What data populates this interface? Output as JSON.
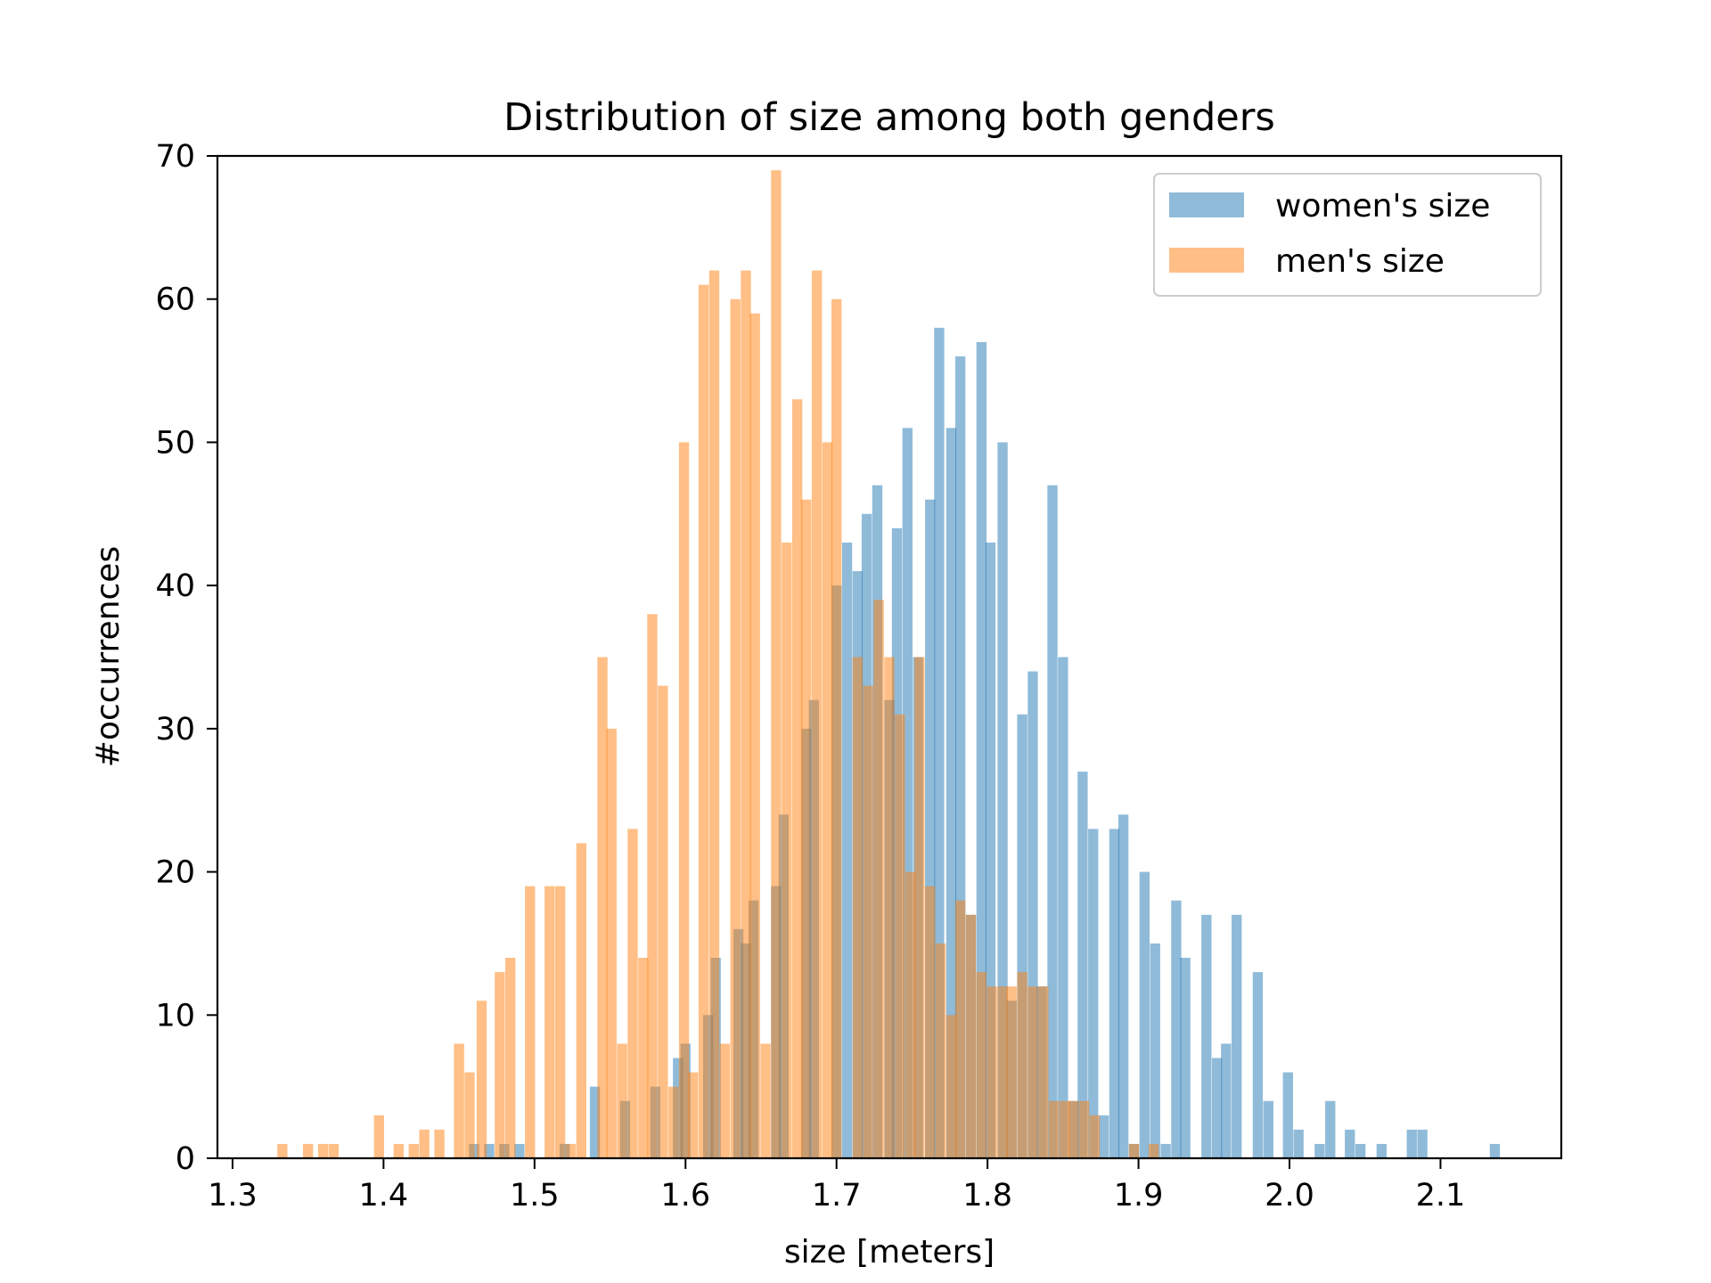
{
  "chart_data": {
    "type": "bar",
    "title": "Distribution of size among both genders",
    "xlabel": "size [meters]",
    "ylabel": "#occurrences",
    "xlim": [
      1.29,
      2.18
    ],
    "ylim": [
      0,
      70
    ],
    "xticks": [
      {
        "value": 1.3,
        "label": "1.3"
      },
      {
        "value": 1.4,
        "label": "1.4"
      },
      {
        "value": 1.5,
        "label": "1.5"
      },
      {
        "value": 1.6,
        "label": "1.6"
      },
      {
        "value": 1.7,
        "label": "1.7"
      },
      {
        "value": 1.8,
        "label": "1.8"
      },
      {
        "value": 1.9,
        "label": "1.9"
      },
      {
        "value": 2.0,
        "label": "2.0"
      },
      {
        "value": 2.1,
        "label": "2.1"
      }
    ],
    "yticks": [
      {
        "value": 0,
        "label": "0"
      },
      {
        "value": 10,
        "label": "10"
      },
      {
        "value": 20,
        "label": "20"
      },
      {
        "value": 30,
        "label": "30"
      },
      {
        "value": 40,
        "label": "40"
      },
      {
        "value": 50,
        "label": "50"
      },
      {
        "value": 60,
        "label": "60"
      },
      {
        "value": 70,
        "label": "70"
      }
    ],
    "grid": false,
    "legend_position": "top-right",
    "bin_width": 0.0067,
    "series": [
      {
        "name": "women's size",
        "color": "#1f77b4",
        "opacity": 0.5,
        "bins": [
          {
            "x": 1.46,
            "y": 1
          },
          {
            "x": 1.47,
            "y": 1
          },
          {
            "x": 1.48,
            "y": 1
          },
          {
            "x": 1.49,
            "y": 1
          },
          {
            "x": 1.52,
            "y": 1
          },
          {
            "x": 1.54,
            "y": 5
          },
          {
            "x": 1.56,
            "y": 4
          },
          {
            "x": 1.58,
            "y": 5
          },
          {
            "x": 1.595,
            "y": 7
          },
          {
            "x": 1.6,
            "y": 8
          },
          {
            "x": 1.615,
            "y": 10
          },
          {
            "x": 1.62,
            "y": 14
          },
          {
            "x": 1.635,
            "y": 16
          },
          {
            "x": 1.64,
            "y": 15
          },
          {
            "x": 1.645,
            "y": 18
          },
          {
            "x": 1.66,
            "y": 19
          },
          {
            "x": 1.665,
            "y": 24
          },
          {
            "x": 1.68,
            "y": 30
          },
          {
            "x": 1.685,
            "y": 32
          },
          {
            "x": 1.7,
            "y": 40
          },
          {
            "x": 1.707,
            "y": 43
          },
          {
            "x": 1.714,
            "y": 41
          },
          {
            "x": 1.72,
            "y": 45
          },
          {
            "x": 1.727,
            "y": 47
          },
          {
            "x": 1.735,
            "y": 32
          },
          {
            "x": 1.74,
            "y": 44
          },
          {
            "x": 1.747,
            "y": 51
          },
          {
            "x": 1.754,
            "y": 35
          },
          {
            "x": 1.762,
            "y": 46
          },
          {
            "x": 1.768,
            "y": 58
          },
          {
            "x": 1.776,
            "y": 51
          },
          {
            "x": 1.782,
            "y": 56
          },
          {
            "x": 1.789,
            "y": 17
          },
          {
            "x": 1.796,
            "y": 57
          },
          {
            "x": 1.802,
            "y": 43
          },
          {
            "x": 1.81,
            "y": 50
          },
          {
            "x": 1.816,
            "y": 11
          },
          {
            "x": 1.823,
            "y": 31
          },
          {
            "x": 1.83,
            "y": 34
          },
          {
            "x": 1.836,
            "y": 12
          },
          {
            "x": 1.843,
            "y": 47
          },
          {
            "x": 1.85,
            "y": 35
          },
          {
            "x": 1.857,
            "y": 4
          },
          {
            "x": 1.863,
            "y": 27
          },
          {
            "x": 1.87,
            "y": 23
          },
          {
            "x": 1.877,
            "y": 3
          },
          {
            "x": 1.884,
            "y": 23
          },
          {
            "x": 1.89,
            "y": 24
          },
          {
            "x": 1.897,
            "y": 1
          },
          {
            "x": 1.904,
            "y": 20
          },
          {
            "x": 1.911,
            "y": 15
          },
          {
            "x": 1.918,
            "y": 1
          },
          {
            "x": 1.925,
            "y": 18
          },
          {
            "x": 1.931,
            "y": 14
          },
          {
            "x": 1.945,
            "y": 17
          },
          {
            "x": 1.952,
            "y": 7
          },
          {
            "x": 1.958,
            "y": 8
          },
          {
            "x": 1.965,
            "y": 17
          },
          {
            "x": 1.979,
            "y": 13
          },
          {
            "x": 1.986,
            "y": 4
          },
          {
            "x": 1.999,
            "y": 6
          },
          {
            "x": 2.006,
            "y": 2
          },
          {
            "x": 2.02,
            "y": 1
          },
          {
            "x": 2.027,
            "y": 4
          },
          {
            "x": 2.04,
            "y": 2
          },
          {
            "x": 2.047,
            "y": 1
          },
          {
            "x": 2.061,
            "y": 1
          },
          {
            "x": 2.081,
            "y": 2
          },
          {
            "x": 2.088,
            "y": 2
          },
          {
            "x": 2.136,
            "y": 1
          }
        ]
      },
      {
        "name": "men's size",
        "color": "#ff7f0e",
        "opacity": 0.5,
        "bins": [
          {
            "x": 1.333,
            "y": 1
          },
          {
            "x": 1.35,
            "y": 1
          },
          {
            "x": 1.36,
            "y": 1
          },
          {
            "x": 1.367,
            "y": 1
          },
          {
            "x": 1.397,
            "y": 3
          },
          {
            "x": 1.41,
            "y": 1
          },
          {
            "x": 1.42,
            "y": 1
          },
          {
            "x": 1.427,
            "y": 2
          },
          {
            "x": 1.437,
            "y": 2
          },
          {
            "x": 1.45,
            "y": 8
          },
          {
            "x": 1.457,
            "y": 6
          },
          {
            "x": 1.465,
            "y": 11
          },
          {
            "x": 1.477,
            "y": 13
          },
          {
            "x": 1.484,
            "y": 14
          },
          {
            "x": 1.497,
            "y": 19
          },
          {
            "x": 1.51,
            "y": 19
          },
          {
            "x": 1.517,
            "y": 19
          },
          {
            "x": 1.524,
            "y": 1
          },
          {
            "x": 1.531,
            "y": 22
          },
          {
            "x": 1.545,
            "y": 35
          },
          {
            "x": 1.551,
            "y": 30
          },
          {
            "x": 1.558,
            "y": 8
          },
          {
            "x": 1.565,
            "y": 23
          },
          {
            "x": 1.572,
            "y": 14
          },
          {
            "x": 1.578,
            "y": 38
          },
          {
            "x": 1.585,
            "y": 33
          },
          {
            "x": 1.592,
            "y": 5
          },
          {
            "x": 1.599,
            "y": 50
          },
          {
            "x": 1.605,
            "y": 6
          },
          {
            "x": 1.612,
            "y": 61
          },
          {
            "x": 1.619,
            "y": 62
          },
          {
            "x": 1.626,
            "y": 8
          },
          {
            "x": 1.633,
            "y": 60
          },
          {
            "x": 1.64,
            "y": 62
          },
          {
            "x": 1.646,
            "y": 59
          },
          {
            "x": 1.653,
            "y": 8
          },
          {
            "x": 1.66,
            "y": 69
          },
          {
            "x": 1.667,
            "y": 43
          },
          {
            "x": 1.674,
            "y": 53
          },
          {
            "x": 1.68,
            "y": 46
          },
          {
            "x": 1.687,
            "y": 62
          },
          {
            "x": 1.694,
            "y": 50
          },
          {
            "x": 1.7,
            "y": 60
          },
          {
            "x": 1.714,
            "y": 35
          },
          {
            "x": 1.721,
            "y": 33
          },
          {
            "x": 1.728,
            "y": 39
          },
          {
            "x": 1.735,
            "y": 35
          },
          {
            "x": 1.742,
            "y": 31
          },
          {
            "x": 1.749,
            "y": 20
          },
          {
            "x": 1.755,
            "y": 35
          },
          {
            "x": 1.762,
            "y": 19
          },
          {
            "x": 1.769,
            "y": 15
          },
          {
            "x": 1.776,
            "y": 10
          },
          {
            "x": 1.782,
            "y": 18
          },
          {
            "x": 1.789,
            "y": 17
          },
          {
            "x": 1.796,
            "y": 13
          },
          {
            "x": 1.803,
            "y": 12
          },
          {
            "x": 1.81,
            "y": 12
          },
          {
            "x": 1.816,
            "y": 12
          },
          {
            "x": 1.823,
            "y": 13
          },
          {
            "x": 1.83,
            "y": 12
          },
          {
            "x": 1.837,
            "y": 12
          },
          {
            "x": 1.844,
            "y": 4
          },
          {
            "x": 1.851,
            "y": 4
          },
          {
            "x": 1.857,
            "y": 4
          },
          {
            "x": 1.864,
            "y": 4
          },
          {
            "x": 1.871,
            "y": 3
          },
          {
            "x": 1.897,
            "y": 1
          },
          {
            "x": 1.91,
            "y": 1
          }
        ]
      }
    ]
  }
}
